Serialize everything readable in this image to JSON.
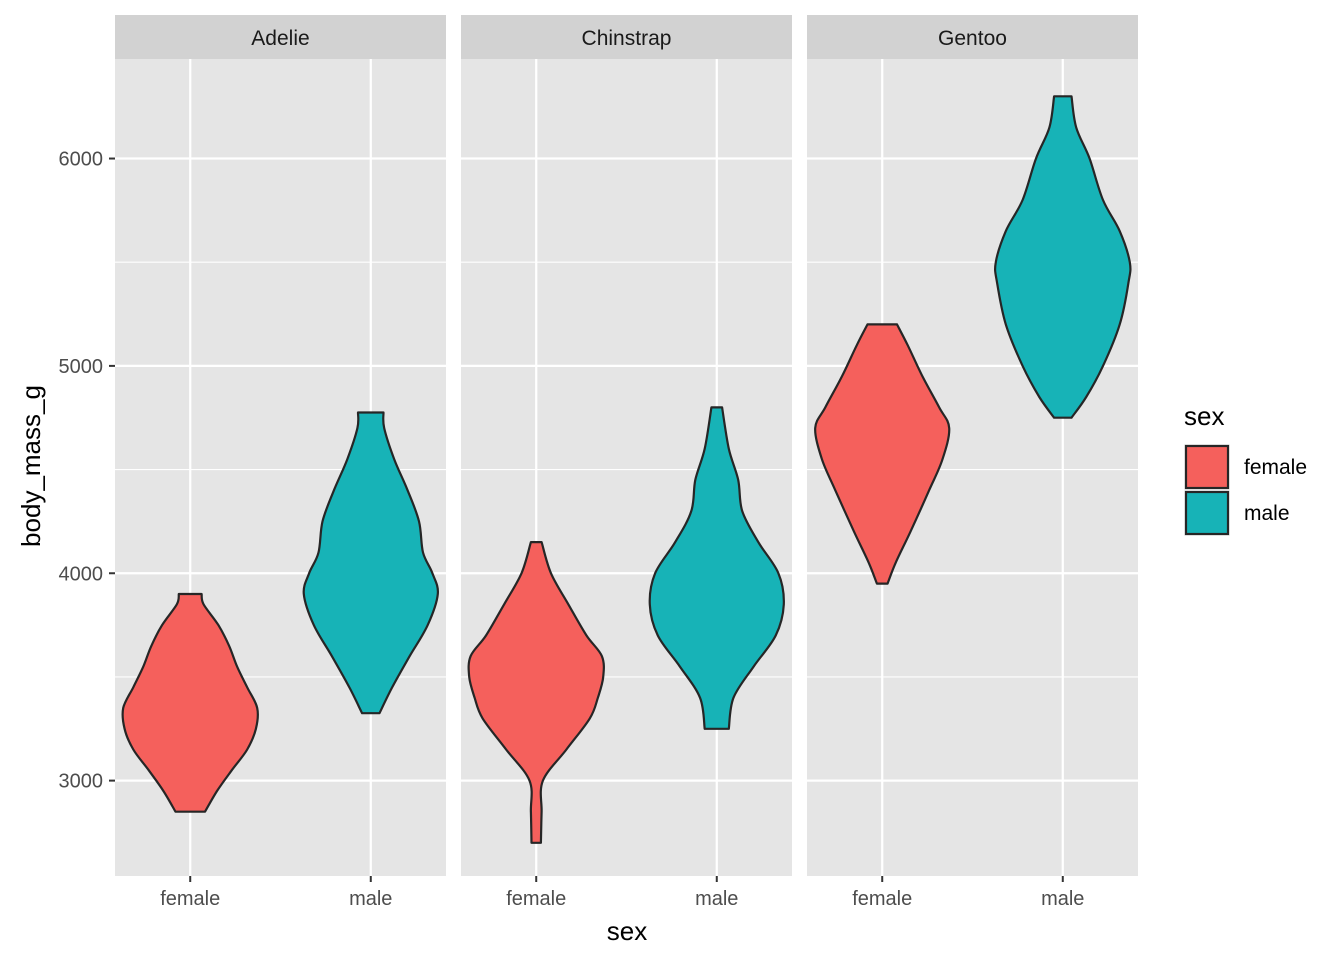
{
  "chart_data": {
    "type": "violin",
    "facet_by": "species",
    "panels": [
      {
        "name": "Adelie",
        "violins": [
          {
            "sex": "female",
            "min": 2850,
            "max": 3900,
            "profile": [
              [
                2850,
                0.22
              ],
              [
                2950,
                0.4
              ],
              [
                3050,
                0.62
              ],
              [
                3150,
                0.85
              ],
              [
                3250,
                0.98
              ],
              [
                3350,
                1.0
              ],
              [
                3450,
                0.85
              ],
              [
                3550,
                0.7
              ],
              [
                3650,
                0.58
              ],
              [
                3750,
                0.42
              ],
              [
                3850,
                0.2
              ],
              [
                3900,
                0.17
              ]
            ]
          },
          {
            "sex": "male",
            "min": 3325,
            "max": 4775,
            "profile": [
              [
                3325,
                0.13
              ],
              [
                3450,
                0.32
              ],
              [
                3600,
                0.58
              ],
              [
                3750,
                0.85
              ],
              [
                3900,
                1.0
              ],
              [
                4000,
                0.92
              ],
              [
                4100,
                0.78
              ],
              [
                4250,
                0.72
              ],
              [
                4400,
                0.55
              ],
              [
                4550,
                0.35
              ],
              [
                4700,
                0.2
              ],
              [
                4775,
                0.19
              ]
            ]
          }
        ]
      },
      {
        "name": "Chinstrap",
        "violins": [
          {
            "sex": "female",
            "min": 2700,
            "max": 4150,
            "profile": [
              [
                2700,
                0.07
              ],
              [
                2850,
                0.08
              ],
              [
                3000,
                0.1
              ],
              [
                3150,
                0.45
              ],
              [
                3300,
                0.8
              ],
              [
                3400,
                0.92
              ],
              [
                3500,
                1.0
              ],
              [
                3600,
                0.98
              ],
              [
                3700,
                0.75
              ],
              [
                3850,
                0.48
              ],
              [
                4000,
                0.22
              ],
              [
                4150,
                0.08
              ]
            ]
          },
          {
            "sex": "male",
            "min": 3250,
            "max": 4800,
            "profile": [
              [
                3250,
                0.18
              ],
              [
                3400,
                0.25
              ],
              [
                3550,
                0.55
              ],
              [
                3700,
                0.88
              ],
              [
                3850,
                1.0
              ],
              [
                4000,
                0.92
              ],
              [
                4150,
                0.62
              ],
              [
                4300,
                0.38
              ],
              [
                4450,
                0.32
              ],
              [
                4600,
                0.18
              ],
              [
                4800,
                0.08
              ]
            ]
          }
        ]
      },
      {
        "name": "Gentoo",
        "violins": [
          {
            "sex": "female",
            "min": 3950,
            "max": 5200,
            "profile": [
              [
                3950,
                0.08
              ],
              [
                4050,
                0.2
              ],
              [
                4200,
                0.42
              ],
              [
                4400,
                0.7
              ],
              [
                4550,
                0.9
              ],
              [
                4700,
                1.0
              ],
              [
                4800,
                0.85
              ],
              [
                4950,
                0.6
              ],
              [
                5100,
                0.38
              ],
              [
                5200,
                0.22
              ]
            ]
          },
          {
            "sex": "male",
            "min": 4750,
            "max": 6300,
            "profile": [
              [
                4750,
                0.13
              ],
              [
                4850,
                0.35
              ],
              [
                5000,
                0.6
              ],
              [
                5200,
                0.85
              ],
              [
                5400,
                0.98
              ],
              [
                5500,
                1.0
              ],
              [
                5650,
                0.85
              ],
              [
                5800,
                0.6
              ],
              [
                6000,
                0.4
              ],
              [
                6150,
                0.2
              ],
              [
                6300,
                0.13
              ]
            ]
          }
        ]
      }
    ],
    "categories": [
      "female",
      "male"
    ],
    "ylim": [
      2540,
      6480
    ],
    "yticks": [
      3000,
      4000,
      5000,
      6000
    ],
    "xlabel": "sex",
    "ylabel": "body_mass_g",
    "legend": {
      "title": "sex",
      "position": "right",
      "entries": [
        {
          "name": "female",
          "color": "#F8766D"
        },
        {
          "name": "male",
          "color": "#00BFC4"
        }
      ]
    },
    "grid": true,
    "colors": {
      "female": "#F5605C",
      "male": "#17B3B7",
      "outline": "#262626",
      "panel": "#e5e5e5",
      "strip": "#d2d2d2",
      "grid": "#ffffff"
    }
  }
}
